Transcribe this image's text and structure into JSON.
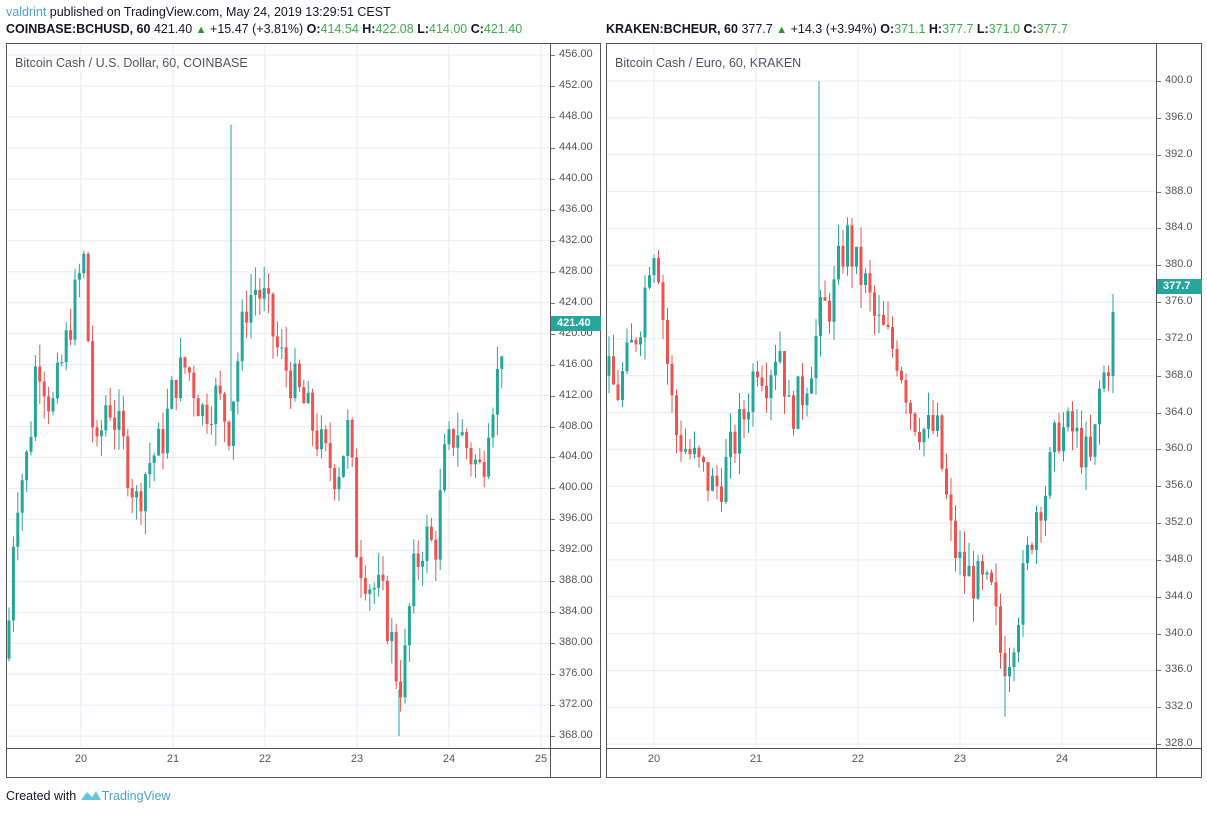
{
  "header": {
    "user": "valdrint",
    "published_text": " published on TradingView.com, May 24, 2019 13:29:51 CEST"
  },
  "footer": {
    "created_with": "Created with",
    "brand": "TradingView"
  },
  "colors": {
    "up": "#26a69a",
    "down": "#ef5350",
    "grid": "#e6eef4",
    "legend_value": "#3cae4a",
    "brand": "#4aa5c7"
  },
  "charts": [
    {
      "symbol": "COINBASE:BCHUSD, 60",
      "last": "421.40",
      "arrow": "▲",
      "change": "+15.47 (+3.81%)",
      "o_label": "O:",
      "o": "414.54",
      "h_label": "H:",
      "h": "422.08",
      "l_label": "L:",
      "l": "414.00",
      "c_label": "C:",
      "c": "421.40",
      "title": "Bitcoin Cash / U.S. Dollar, 60, COINBASE",
      "price_tag": "421.40"
    },
    {
      "symbol": "KRAKEN:BCHEUR, 60",
      "last": "377.7",
      "arrow": "▲",
      "change": "+14.3 (+3.94%)",
      "o_label": "O:",
      "o": "371.1",
      "h_label": "H:",
      "h": "377.7",
      "l_label": "L:",
      "l": "371.0",
      "c_label": "C:",
      "c": "377.7",
      "title": "Bitcoin Cash / Euro, 60, KRAKEN",
      "price_tag": "377.7"
    }
  ],
  "chart_data": [
    {
      "type": "candlestick",
      "title": "Bitcoin Cash / U.S. Dollar, 60, COINBASE",
      "xlabel": "",
      "ylabel": "",
      "x_ticks": [
        "20",
        "21",
        "22",
        "23",
        "24",
        "25"
      ],
      "y_ticks": [
        "456.00",
        "452.00",
        "448.00",
        "444.00",
        "440.00",
        "436.00",
        "432.00",
        "428.00",
        "424.00",
        "420.00",
        "416.00",
        "412.00",
        "408.00",
        "404.00",
        "400.00",
        "396.00",
        "392.00",
        "388.00",
        "384.00",
        "380.00",
        "376.00",
        "372.00",
        "368.00"
      ],
      "ylim": [
        366,
        458
      ],
      "grid": true,
      "last_price": 421.4,
      "summary": {
        "open": 414.54,
        "high": 422.08,
        "low": 414.0,
        "close": 421.4,
        "change": 15.47,
        "change_pct": 3.81
      },
      "notable_points": {
        "spike_high": 447,
        "peak_day20": 434,
        "peak_day22": 429,
        "low_day23": 368,
        "last": 421.4
      }
    },
    {
      "type": "candlestick",
      "title": "Bitcoin Cash / Euro, 60, KRAKEN",
      "xlabel": "",
      "ylabel": "",
      "x_ticks": [
        "20",
        "21",
        "22",
        "23",
        "24"
      ],
      "y_ticks": [
        "400.0",
        "396.0",
        "392.0",
        "388.0",
        "384.0",
        "380.0",
        "376.0",
        "372.0",
        "368.0",
        "364.0",
        "360.0",
        "356.0",
        "352.0",
        "348.0",
        "344.0",
        "340.0",
        "336.0",
        "332.0",
        "328.0"
      ],
      "ylim": [
        327,
        402
      ],
      "grid": true,
      "last_price": 377.7,
      "summary": {
        "open": 371.1,
        "high": 377.7,
        "low": 371.0,
        "close": 377.7,
        "change": 14.3,
        "change_pct": 3.94
      },
      "notable_points": {
        "spike_high": 400,
        "peak_day20": 387,
        "peak_day22": 384,
        "low_day23": 331,
        "last": 377.7
      }
    }
  ]
}
